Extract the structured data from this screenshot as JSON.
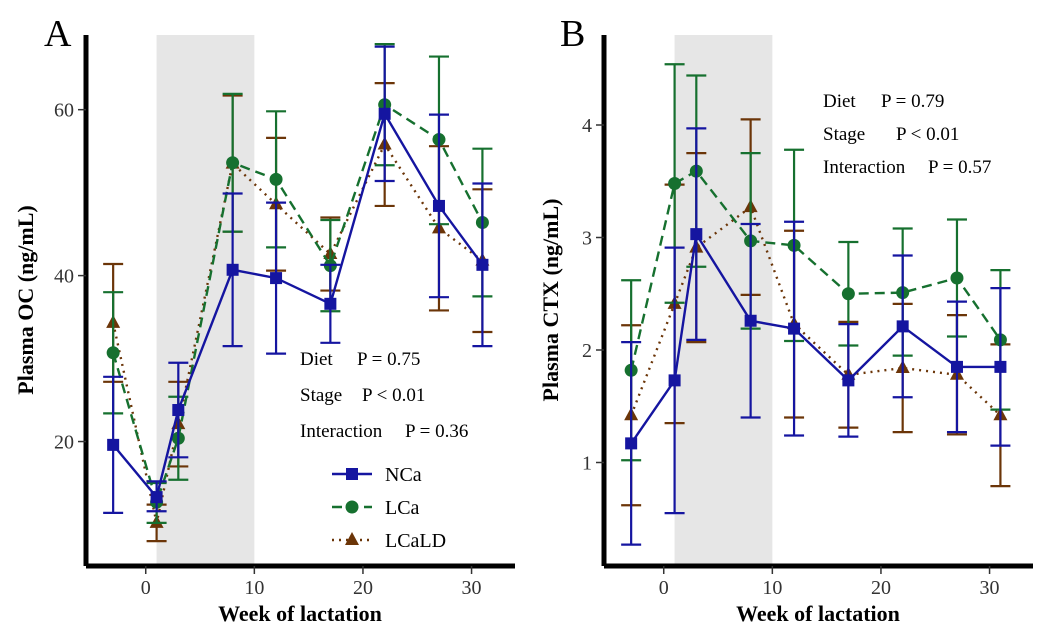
{
  "colors": {
    "NCa": "#1515a0",
    "LCa": "#16702f",
    "LCaLD": "#6b3508",
    "shade": "#e6e6e6"
  },
  "legend": {
    "entries": [
      "NCa",
      "LCa",
      "LCaLD"
    ],
    "placement": "bottom-right of panel A"
  },
  "chart_data": [
    {
      "type": "line",
      "panel_label": "A",
      "xlabel": "Week of lactation",
      "ylabel": "Plasma OC (ng/mL)",
      "xlim": [
        -5.5,
        34
      ],
      "ylim": [
        5,
        69
      ],
      "xticks": [
        0,
        10,
        20,
        30
      ],
      "yticks": [
        20,
        40,
        60
      ],
      "grid": false,
      "shaded_region": [
        1,
        10
      ],
      "x": [
        -3,
        1,
        3,
        8,
        12,
        17,
        22,
        27,
        31
      ],
      "series": [
        {
          "name": "NCa",
          "marker": "square",
          "dash": "solid",
          "values": [
            19.6,
            13.3,
            23.8,
            40.7,
            39.7,
            36.6,
            59.5,
            48.4,
            41.3
          ],
          "err_low": [
            11.4,
            11.6,
            18.1,
            31.5,
            30.6,
            31.9,
            51.4,
            37.4,
            31.5
          ],
          "err_high": [
            27.8,
            15.2,
            29.5,
            49.9,
            48.8,
            41.3,
            67.6,
            59.4,
            51.1
          ]
        },
        {
          "name": "LCa",
          "marker": "circle",
          "dash": "dashed",
          "values": [
            30.7,
            12.7,
            20.4,
            53.6,
            51.6,
            41.2,
            60.6,
            56.4,
            46.4
          ],
          "err_low": [
            23.4,
            10.2,
            15.4,
            45.3,
            43.4,
            35.7,
            53.3,
            46.2,
            37.5
          ],
          "err_high": [
            38.0,
            15.0,
            25.4,
            61.9,
            59.8,
            46.7,
            67.9,
            66.4,
            55.3
          ]
        },
        {
          "name": "LCaLD",
          "marker": "triangle",
          "dash": "dotted",
          "values": [
            34.3,
            10.2,
            22.1,
            53.5,
            48.6,
            42.6,
            55.8,
            45.7,
            41.8
          ],
          "err_low": [
            27.2,
            8.0,
            17.0,
            45.3,
            40.6,
            38.2,
            48.4,
            35.8,
            33.2
          ],
          "err_high": [
            41.4,
            12.4,
            27.2,
            61.7,
            56.6,
            47.0,
            63.2,
            55.6,
            50.4
          ]
        }
      ],
      "annotations": [
        {
          "label": "Diet",
          "value": "P = 0.75"
        },
        {
          "label": "Stage",
          "value": "P < 0.01"
        },
        {
          "label": "Interaction",
          "value": "P = 0.36"
        }
      ]
    },
    {
      "type": "line",
      "panel_label": "B",
      "xlabel": "Week of lactation",
      "ylabel": "Plasma CTX (ng/mL)",
      "xlim": [
        -5.5,
        34
      ],
      "ylim": [
        0.08,
        4.8
      ],
      "xticks": [
        0,
        10,
        20,
        30
      ],
      "yticks": [
        1,
        2,
        3,
        4
      ],
      "grid": false,
      "shaded_region": [
        1,
        10
      ],
      "x": [
        -3,
        1,
        3,
        8,
        12,
        17,
        22,
        27,
        31
      ],
      "series": [
        {
          "name": "NCa",
          "marker": "square",
          "dash": "solid",
          "values": [
            1.17,
            1.73,
            3.03,
            2.26,
            2.19,
            1.73,
            2.21,
            1.85,
            1.85
          ],
          "err_low": [
            0.27,
            0.55,
            2.09,
            1.4,
            1.24,
            1.23,
            1.58,
            1.27,
            1.15
          ],
          "err_high": [
            2.07,
            2.91,
            3.97,
            3.12,
            3.14,
            2.23,
            2.84,
            2.43,
            2.55
          ]
        },
        {
          "name": "LCa",
          "marker": "circle",
          "dash": "dashed",
          "values": [
            1.82,
            3.48,
            3.59,
            2.97,
            2.93,
            2.5,
            2.51,
            2.64,
            2.09
          ],
          "err_low": [
            1.02,
            2.42,
            2.74,
            2.19,
            2.08,
            2.04,
            1.95,
            2.12,
            1.47
          ],
          "err_high": [
            2.62,
            4.54,
            4.44,
            3.75,
            3.78,
            2.96,
            3.08,
            3.16,
            2.71
          ]
        },
        {
          "name": "LCaLD",
          "marker": "triangle",
          "dash": "dotted",
          "values": [
            1.42,
            2.41,
            2.91,
            3.27,
            2.23,
            1.78,
            1.84,
            1.78,
            1.42
          ],
          "err_low": [
            0.62,
            1.35,
            2.07,
            2.49,
            1.4,
            1.31,
            1.27,
            1.25,
            0.79
          ],
          "err_high": [
            2.22,
            3.47,
            3.75,
            4.05,
            3.06,
            2.25,
            2.41,
            2.31,
            2.05
          ]
        }
      ],
      "annotations": [
        {
          "label": "Diet",
          "value": "P = 0.79"
        },
        {
          "label": "Stage",
          "value": "P < 0.01"
        },
        {
          "label": "Interaction",
          "value": "P = 0.57"
        }
      ]
    }
  ]
}
